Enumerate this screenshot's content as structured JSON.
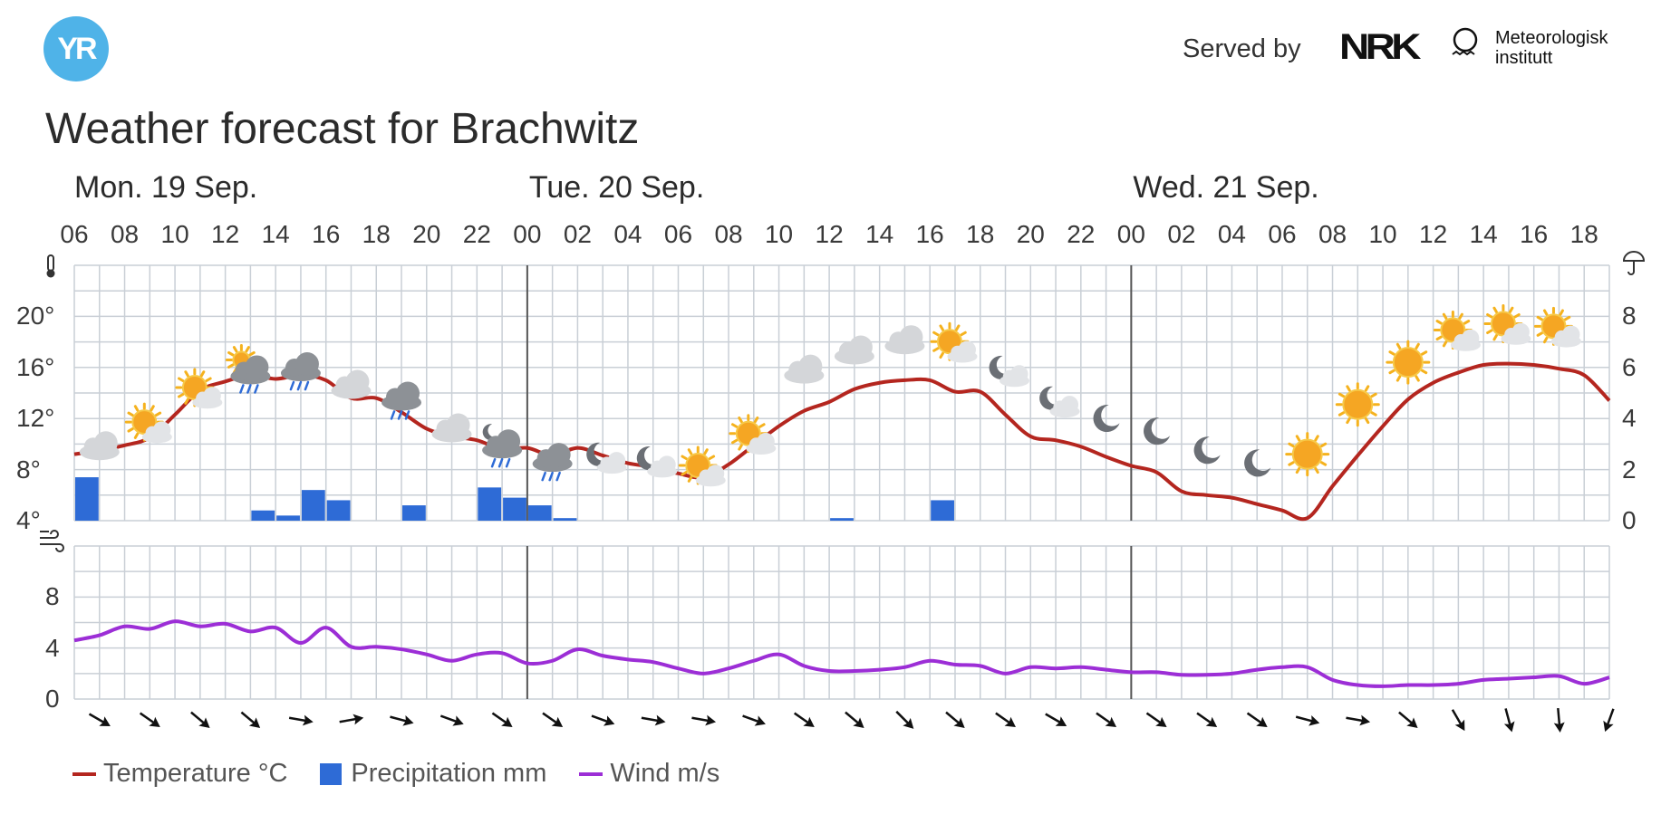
{
  "header": {
    "logo_text": "YR",
    "served_by": "Served by",
    "nrk": "NRK",
    "met_line1": "Meteorologisk",
    "met_line2": "institutt"
  },
  "title": "Weather forecast for Brachwitz",
  "colors": {
    "temperature": "#b4261f",
    "precipitation": "#2e6bd6",
    "wind": "#9c2ed6",
    "grid": "#c9cfd6",
    "day_divider": "#555555"
  },
  "chart_data": [
    {
      "type": "line",
      "panel": "temperature-precipitation",
      "x_unit": "hour",
      "days": [
        {
          "label": "Mon. 19 Sep.",
          "start_hour": 6
        },
        {
          "label": "Tue. 20 Sep.",
          "start_hour": 24
        },
        {
          "label": "Wed. 21 Sep.",
          "start_hour": 48
        }
      ],
      "hour_ticks": [
        "06",
        "08",
        "10",
        "12",
        "14",
        "16",
        "18",
        "20",
        "22",
        "00",
        "02",
        "04",
        "06",
        "08",
        "10",
        "12",
        "14",
        "16",
        "18",
        "20",
        "22",
        "00",
        "02",
        "04",
        "06",
        "08",
        "10",
        "12",
        "14",
        "16",
        "18"
      ],
      "xlim": [
        6,
        67
      ],
      "y_left": {
        "label_icon": "thermometer-icon",
        "ticks": [
          "4°",
          "8°",
          "12°",
          "16°",
          "20°"
        ],
        "ylim": [
          4,
          24
        ]
      },
      "y_right": {
        "label_icon": "umbrella-icon",
        "ticks": [
          "0",
          "2",
          "4",
          "6",
          "8"
        ],
        "ylim": [
          0,
          10
        ]
      },
      "series": [
        {
          "name": "Temperature °C",
          "kind": "line",
          "x": [
            6,
            7,
            8,
            9,
            10,
            11,
            12,
            13,
            14,
            15,
            16,
            17,
            18,
            19,
            20,
            21,
            22,
            23,
            24,
            25,
            26,
            27,
            28,
            29,
            30,
            31,
            32,
            33,
            34,
            35,
            36,
            37,
            38,
            39,
            40,
            41,
            42,
            43,
            44,
            45,
            46,
            47,
            48,
            49,
            50,
            51,
            52,
            53,
            54,
            55,
            56,
            57,
            58,
            59,
            60,
            61,
            62,
            63,
            64,
            65,
            66,
            67
          ],
          "values": [
            9.2,
            9.5,
            9.9,
            10.5,
            12.3,
            14.2,
            14.9,
            15.4,
            15.1,
            15.4,
            15.0,
            13.6,
            13.6,
            12.5,
            11.2,
            10.6,
            10.3,
            9.6,
            9.7,
            9.1,
            9.7,
            9.1,
            8.5,
            8.2,
            7.7,
            7.4,
            8.4,
            9.9,
            11.4,
            12.6,
            13.3,
            14.3,
            14.8,
            15.0,
            15.0,
            14.1,
            14.1,
            12.3,
            10.6,
            10.3,
            9.8,
            9.0,
            8.3,
            7.8,
            6.3,
            6.0,
            5.8,
            5.3,
            4.8,
            4.2,
            6.7,
            9.1,
            11.4,
            13.5,
            14.8,
            15.6,
            16.2,
            16.3,
            16.2,
            15.9,
            15.4,
            13.4
          ]
        },
        {
          "name": "Precipitation mm",
          "kind": "bar",
          "x": [
            6,
            13,
            14,
            15,
            16,
            19,
            22,
            23,
            24,
            25,
            36,
            40
          ],
          "values": [
            1.7,
            0.4,
            0.2,
            1.2,
            0.8,
            0.6,
            1.3,
            0.9,
            0.6,
            0.1,
            0.1,
            0.8
          ]
        }
      ],
      "weather_icons": [
        {
          "x": 7,
          "icon": "cloud",
          "temp": 9.8
        },
        {
          "x": 9,
          "icon": "sun-cloud",
          "temp": 11.3
        },
        {
          "x": 11,
          "icon": "sun-cloud",
          "temp": 14.0
        },
        {
          "x": 13,
          "icon": "rain-sun-cloud",
          "temp": 15.6
        },
        {
          "x": 15,
          "icon": "rain-cloud",
          "temp": 15.7
        },
        {
          "x": 17,
          "icon": "cloud",
          "temp": 14.6
        },
        {
          "x": 19,
          "icon": "rain-cloud",
          "temp": 13.4
        },
        {
          "x": 21,
          "icon": "cloud",
          "temp": 11.2
        },
        {
          "x": 23,
          "icon": "rain-moon-cloud",
          "temp": 9.8
        },
        {
          "x": 25,
          "icon": "rain-cloud",
          "temp": 8.6
        },
        {
          "x": 27,
          "icon": "moon-cloud",
          "temp": 8.9
        },
        {
          "x": 29,
          "icon": "moon-cloud",
          "temp": 8.6
        },
        {
          "x": 31,
          "icon": "sun-cloud",
          "temp": 7.9
        },
        {
          "x": 33,
          "icon": "sun-cloud",
          "temp": 10.4
        },
        {
          "x": 35,
          "icon": "cloud",
          "temp": 15.8
        },
        {
          "x": 37,
          "icon": "cloud",
          "temp": 17.3
        },
        {
          "x": 39,
          "icon": "cloud",
          "temp": 18.1
        },
        {
          "x": 41,
          "icon": "sun-cloud",
          "temp": 17.6
        },
        {
          "x": 43,
          "icon": "moon-cloud",
          "temp": 15.7
        },
        {
          "x": 45,
          "icon": "moon-cloud",
          "temp": 13.3
        },
        {
          "x": 47,
          "icon": "moon",
          "temp": 12.0
        },
        {
          "x": 49,
          "icon": "moon",
          "temp": 11.0
        },
        {
          "x": 51,
          "icon": "moon",
          "temp": 9.5
        },
        {
          "x": 53,
          "icon": "moon",
          "temp": 8.5
        },
        {
          "x": 55,
          "icon": "sun",
          "temp": 9.2
        },
        {
          "x": 57,
          "icon": "sun",
          "temp": 13.1
        },
        {
          "x": 59,
          "icon": "sun",
          "temp": 16.4
        },
        {
          "x": 61,
          "icon": "sun-cloud",
          "temp": 18.5
        },
        {
          "x": 63,
          "icon": "sun-cloud",
          "temp": 19.0
        },
        {
          "x": 65,
          "icon": "sun-cloud",
          "temp": 18.8
        }
      ]
    },
    {
      "type": "line",
      "panel": "wind",
      "x_unit": "hour",
      "xlim": [
        6,
        67
      ],
      "y_left": {
        "label_icon": "wind-icon",
        "ticks": [
          "0",
          "4",
          "8"
        ],
        "ylim": [
          0,
          12
        ]
      },
      "series": [
        {
          "name": "Wind m/s",
          "kind": "line",
          "x": [
            6,
            7,
            8,
            9,
            10,
            11,
            12,
            13,
            14,
            15,
            16,
            17,
            18,
            19,
            20,
            21,
            22,
            23,
            24,
            25,
            26,
            27,
            28,
            29,
            30,
            31,
            32,
            33,
            34,
            35,
            36,
            37,
            38,
            39,
            40,
            41,
            42,
            43,
            44,
            45,
            46,
            47,
            48,
            49,
            50,
            51,
            52,
            53,
            54,
            55,
            56,
            57,
            58,
            59,
            60,
            61,
            62,
            63,
            64,
            65,
            66,
            67
          ],
          "values": [
            4.6,
            5.0,
            5.7,
            5.5,
            6.1,
            5.7,
            5.9,
            5.3,
            5.6,
            4.4,
            5.6,
            4.1,
            4.1,
            3.9,
            3.5,
            3.0,
            3.5,
            3.6,
            2.8,
            3.0,
            3.9,
            3.4,
            3.1,
            2.9,
            2.4,
            2.0,
            2.4,
            3.0,
            3.5,
            2.6,
            2.2,
            2.2,
            2.3,
            2.5,
            3.0,
            2.7,
            2.6,
            2.0,
            2.5,
            2.4,
            2.5,
            2.3,
            2.1,
            2.1,
            1.9,
            1.9,
            2.0,
            2.3,
            2.5,
            2.5,
            1.5,
            1.1,
            1.0,
            1.1,
            1.1,
            1.2,
            1.5,
            1.6,
            1.7,
            1.8,
            1.2,
            1.7
          ]
        }
      ],
      "wind_directions": {
        "x": [
          7,
          9,
          11,
          13,
          15,
          17,
          19,
          21,
          23,
          25,
          27,
          29,
          31,
          33,
          35,
          37,
          39,
          41,
          43,
          45,
          47,
          49,
          51,
          53,
          55,
          57,
          59,
          61,
          63,
          65,
          67
        ],
        "to_bearing_deg": [
          120,
          125,
          130,
          130,
          100,
          80,
          105,
          110,
          125,
          125,
          110,
          100,
          100,
          110,
          125,
          130,
          135,
          130,
          125,
          120,
          125,
          125,
          125,
          125,
          105,
          100,
          130,
          150,
          165,
          175,
          200
        ]
      }
    }
  ],
  "legend": [
    {
      "label": "Temperature °C",
      "swatch": "line",
      "color": "#b4261f"
    },
    {
      "label": "Precipitation mm",
      "swatch": "box",
      "color": "#2e6bd6"
    },
    {
      "label": "Wind m/s",
      "swatch": "line",
      "color": "#9c2ed6"
    }
  ]
}
